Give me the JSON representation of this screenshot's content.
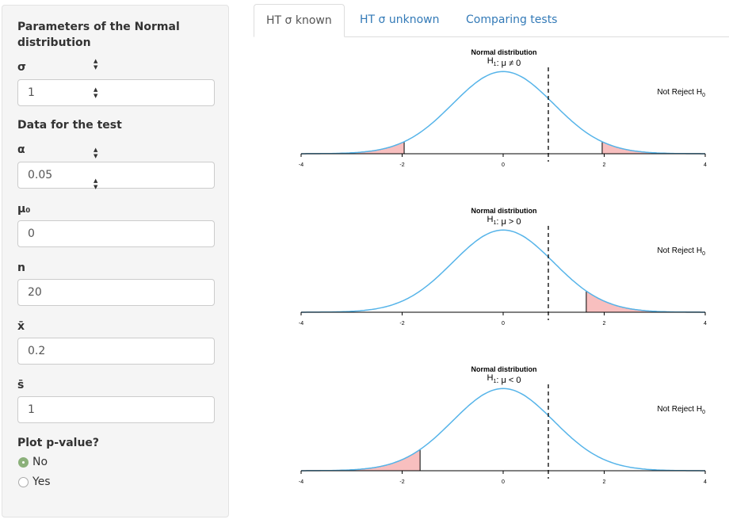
{
  "sidebar": {
    "section1_title": "Parameters of the Normal distribution",
    "sigma": {
      "label": "σ",
      "value": "1"
    },
    "section2_title": "Data for the test",
    "alpha": {
      "label": "α",
      "value": "0.05"
    },
    "mu0": {
      "label": "μ₀",
      "value": "0"
    },
    "n": {
      "label": "n",
      "value": "20"
    },
    "xbar": {
      "label": "x̄",
      "value": "0.2"
    },
    "sbar": {
      "label": "s̄",
      "value": "1"
    },
    "plot_pvalue": {
      "label": "Plot p-value?",
      "options": [
        "No",
        "Yes"
      ],
      "selected": "No"
    }
  },
  "tabs": [
    {
      "label": "HT σ known",
      "active": true
    },
    {
      "label": "HT σ unknown",
      "active": false
    },
    {
      "label": "Comparing tests",
      "active": false
    }
  ],
  "colors": {
    "curve": "#56b4e9",
    "rejection_fill": "#f8bfbf",
    "selected_radio": "#8bb07a",
    "link": "#337ab7"
  },
  "chart_data": [
    {
      "type": "area",
      "title": "Normal distribution",
      "subtitle": "H1: μ ≠ 0",
      "decision": "Not Reject H0",
      "x_ticks": [
        "-4",
        "-2",
        "0",
        "2",
        "4"
      ],
      "xlim": [
        -4,
        4
      ],
      "curve": {
        "distribution": "standard normal",
        "mean": 0,
        "sd": 1
      },
      "rejection_regions": [
        [
          -4,
          -1.96
        ],
        [
          1.96,
          4
        ]
      ],
      "test_statistic": 0.894
    },
    {
      "type": "area",
      "title": "Normal distribution",
      "subtitle": "H1: μ > 0",
      "decision": "Not Reject H0",
      "x_ticks": [
        "-4",
        "-2",
        "0",
        "2",
        "4"
      ],
      "xlim": [
        -4,
        4
      ],
      "curve": {
        "distribution": "standard normal",
        "mean": 0,
        "sd": 1
      },
      "rejection_regions": [
        [
          1.645,
          4
        ]
      ],
      "test_statistic": 0.894
    },
    {
      "type": "area",
      "title": "Normal distribution",
      "subtitle": "H1: μ < 0",
      "decision": "Not Reject H0",
      "x_ticks": [
        "-4",
        "-2",
        "0",
        "2",
        "4"
      ],
      "xlim": [
        -4,
        4
      ],
      "curve": {
        "distribution": "standard normal",
        "mean": 0,
        "sd": 1
      },
      "rejection_regions": [
        [
          -4,
          -1.645
        ]
      ],
      "test_statistic": 0.894
    }
  ]
}
